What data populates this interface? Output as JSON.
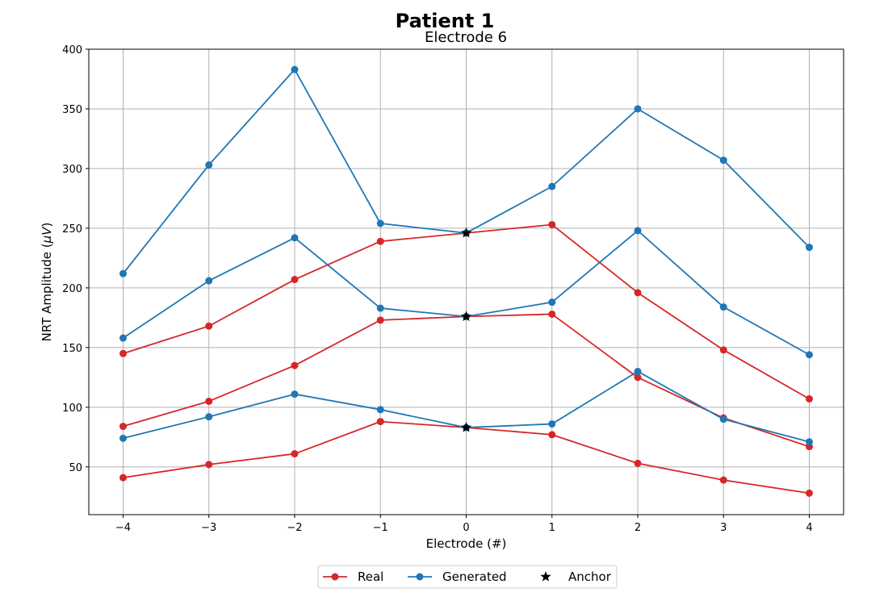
{
  "chart_data": {
    "type": "line",
    "title": "Patient 1",
    "subtitle": "Electrode 6",
    "xlabel": "Electrode (#)",
    "ylabel": "NRT Amplitude (",
    "ylabel_unit": "μV",
    "ylabel_close": ")",
    "xlim": [
      -4.4,
      4.4
    ],
    "ylim": [
      10,
      400
    ],
    "x_ticks": [
      -4,
      -3,
      -2,
      -1,
      0,
      1,
      2,
      3,
      4
    ],
    "x_tick_labels": [
      "−4",
      "−3",
      "−2",
      "−1",
      "0",
      "1",
      "2",
      "3",
      "4"
    ],
    "y_ticks": [
      50,
      100,
      150,
      200,
      250,
      300,
      350,
      400
    ],
    "y_tick_labels": [
      "50",
      "100",
      "150",
      "200",
      "250",
      "300",
      "350",
      "400"
    ],
    "grid": true,
    "legend_placement": "bottom-center",
    "x": [
      -4,
      -3,
      -2,
      -1,
      0,
      1,
      2,
      3,
      4
    ],
    "series": [
      {
        "name": "Real",
        "color": "#d62728",
        "values": [
          41,
          52,
          61,
          88,
          83,
          77,
          53,
          39,
          28
        ]
      },
      {
        "name": "Real",
        "color": "#d62728",
        "values": [
          84,
          105,
          135,
          173,
          176,
          178,
          125,
          91,
          67
        ]
      },
      {
        "name": "Real",
        "color": "#d62728",
        "values": [
          145,
          168,
          207,
          239,
          246,
          253,
          196,
          148,
          107
        ]
      },
      {
        "name": "Generated",
        "color": "#1f77b4",
        "values": [
          74,
          92,
          111,
          98,
          83,
          86,
          130,
          90,
          71
        ]
      },
      {
        "name": "Generated",
        "color": "#1f77b4",
        "values": [
          158,
          206,
          242,
          183,
          176,
          188,
          248,
          184,
          144
        ]
      },
      {
        "name": "Generated",
        "color": "#1f77b4",
        "values": [
          212,
          303,
          383,
          254,
          246,
          285,
          350,
          307,
          234
        ]
      }
    ],
    "anchors": [
      {
        "x": 0,
        "y": 83
      },
      {
        "x": 0,
        "y": 176
      },
      {
        "x": 0,
        "y": 246
      }
    ],
    "legend": [
      {
        "label": "Real",
        "color": "#d62728",
        "marker": "circle"
      },
      {
        "label": "Generated",
        "color": "#1f77b4",
        "marker": "circle"
      },
      {
        "label": "Anchor",
        "color": "#000000",
        "marker": "star"
      }
    ]
  }
}
